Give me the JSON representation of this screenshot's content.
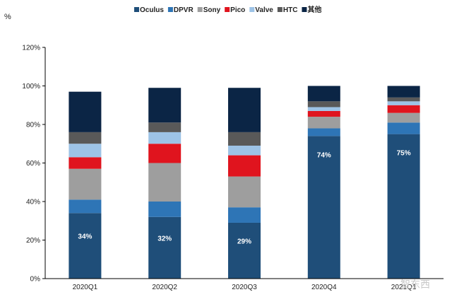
{
  "chart_data": {
    "type": "bar",
    "stacked": true,
    "ylabel": "%",
    "ylim": [
      0,
      120
    ],
    "yticks": [
      "0%",
      "20%",
      "40%",
      "60%",
      "80%",
      "100%",
      "120%"
    ],
    "grid": false,
    "legend_position": "top",
    "categories": [
      "2020Q1",
      "2020Q2",
      "2020Q3",
      "2020Q4",
      "2021Q1"
    ],
    "series": [
      {
        "name": "Oculus",
        "color": "#1f4e79",
        "values": [
          34,
          32,
          29,
          74,
          75
        ],
        "labels": [
          "34%",
          "32%",
          "29%",
          "74%",
          "75%"
        ]
      },
      {
        "name": "DPVR",
        "color": "#2e75b6",
        "values": [
          7,
          8,
          8,
          4,
          6
        ]
      },
      {
        "name": "Sony",
        "color": "#9e9e9e",
        "values": [
          16,
          20,
          16,
          6,
          5
        ]
      },
      {
        "name": "Pico",
        "color": "#e0141e",
        "values": [
          6,
          10,
          11,
          3,
          4
        ]
      },
      {
        "name": "Valve",
        "color": "#9dc3e6",
        "values": [
          7,
          6,
          5,
          2,
          2
        ]
      },
      {
        "name": "HTC",
        "color": "#595959",
        "values": [
          6,
          5,
          7,
          3,
          2
        ]
      },
      {
        "name": "其他",
        "color": "#0b2545",
        "values": [
          21,
          18,
          23,
          8,
          6
        ]
      }
    ]
  },
  "watermark": "智东西"
}
